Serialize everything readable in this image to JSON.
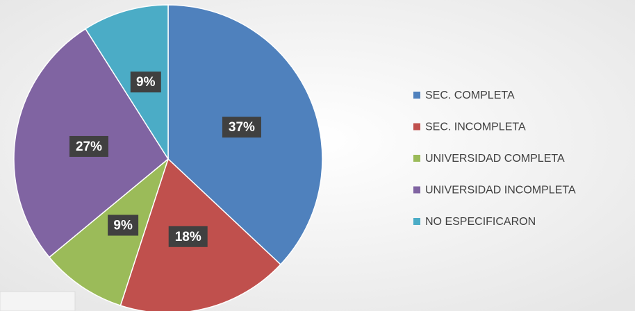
{
  "chart_data": {
    "type": "pie",
    "categories": [
      "SEC. COMPLETA",
      "SEC. INCOMPLETA",
      "UNIVERSIDAD COMPLETA",
      "UNIVERSIDAD INCOMPLETA",
      "NO ESPECIFICARON"
    ],
    "values": [
      37,
      18,
      9,
      27,
      9
    ],
    "value_labels": [
      "37%",
      "18%",
      "9%",
      "27%",
      "9%"
    ],
    "colors": [
      "#4f81bd",
      "#c0504d",
      "#9bbb59",
      "#8064a2",
      "#4bacc6"
    ],
    "legend": "right"
  }
}
